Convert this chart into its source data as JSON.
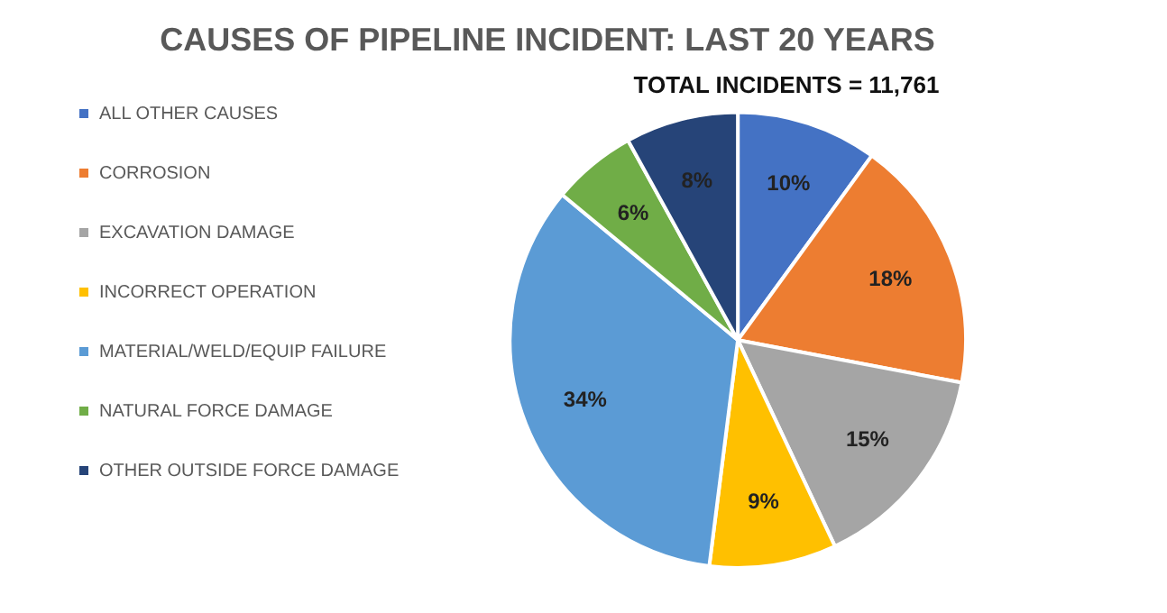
{
  "chart_data": {
    "type": "pie",
    "title": "CAUSES OF PIPELINE INCIDENT: LAST 20 YEARS",
    "subtitle": "TOTAL INCIDENTS = 11,761",
    "categories": [
      "ALL OTHER CAUSES",
      "CORROSION",
      "EXCAVATION DAMAGE",
      "INCORRECT OPERATION",
      "MATERIAL/WELD/EQUIP FAILURE",
      "NATURAL FORCE DAMAGE",
      "OTHER OUTSIDE FORCE DAMAGE"
    ],
    "values": [
      10,
      18,
      15,
      9,
      34,
      6,
      8
    ],
    "colors": [
      "#4472c4",
      "#ed7d31",
      "#a5a5a5",
      "#ffc000",
      "#5b9bd5",
      "#70ad47",
      "#264478"
    ],
    "value_labels": [
      "10%",
      "18%",
      "15%",
      "9%",
      "34%",
      "6%",
      "8%"
    ],
    "legend": "left"
  }
}
